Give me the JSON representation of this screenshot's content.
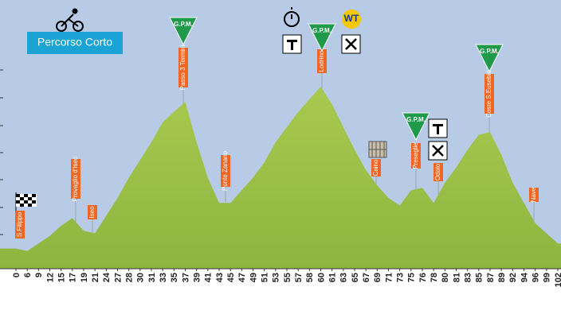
{
  "chart_data": {
    "type": "area",
    "title": "Percorso Corto",
    "color": "#8db53f",
    "categories": [
      "0",
      "6",
      "9",
      "12",
      "15",
      "17",
      "19",
      "21",
      "24",
      "27",
      "28",
      "30",
      "31",
      "33",
      "35",
      "37",
      "39",
      "41",
      "43",
      "45",
      "47",
      "49",
      "51",
      "53",
      "55",
      "57",
      "58",
      "60",
      "61",
      "63",
      "65",
      "67",
      "69",
      "71",
      "73",
      "75",
      "76",
      "78",
      "80",
      "81",
      "83",
      "85",
      "87",
      "89",
      "92",
      "94",
      "96",
      "99",
      "102"
    ],
    "values": [
      8,
      7,
      10,
      13,
      17,
      20,
      15,
      14,
      21,
      28,
      36,
      43,
      50,
      58,
      62,
      66,
      50,
      36,
      26,
      26,
      31,
      36,
      42,
      50,
      56,
      62,
      67,
      72,
      65,
      56,
      47,
      39,
      33,
      28,
      25,
      31,
      32,
      26,
      34,
      40,
      47,
      53,
      54,
      45,
      34,
      26,
      18,
      14,
      10
    ],
    "ylim": [
      0,
      100
    ],
    "waypoints": [
      "S.Filippo",
      "Provaglio d'Iseo",
      "Iseo",
      "Passo 3 Termini",
      "Ponte Zanano",
      "Lodrino",
      "Caino",
      "Preseglie",
      "Odolo",
      "Coste S.Eusebio",
      "Nave"
    ],
    "gpm": [
      "G.P.M.",
      "G.P.M.",
      "G.P.M.",
      "G.P.M."
    ]
  }
}
